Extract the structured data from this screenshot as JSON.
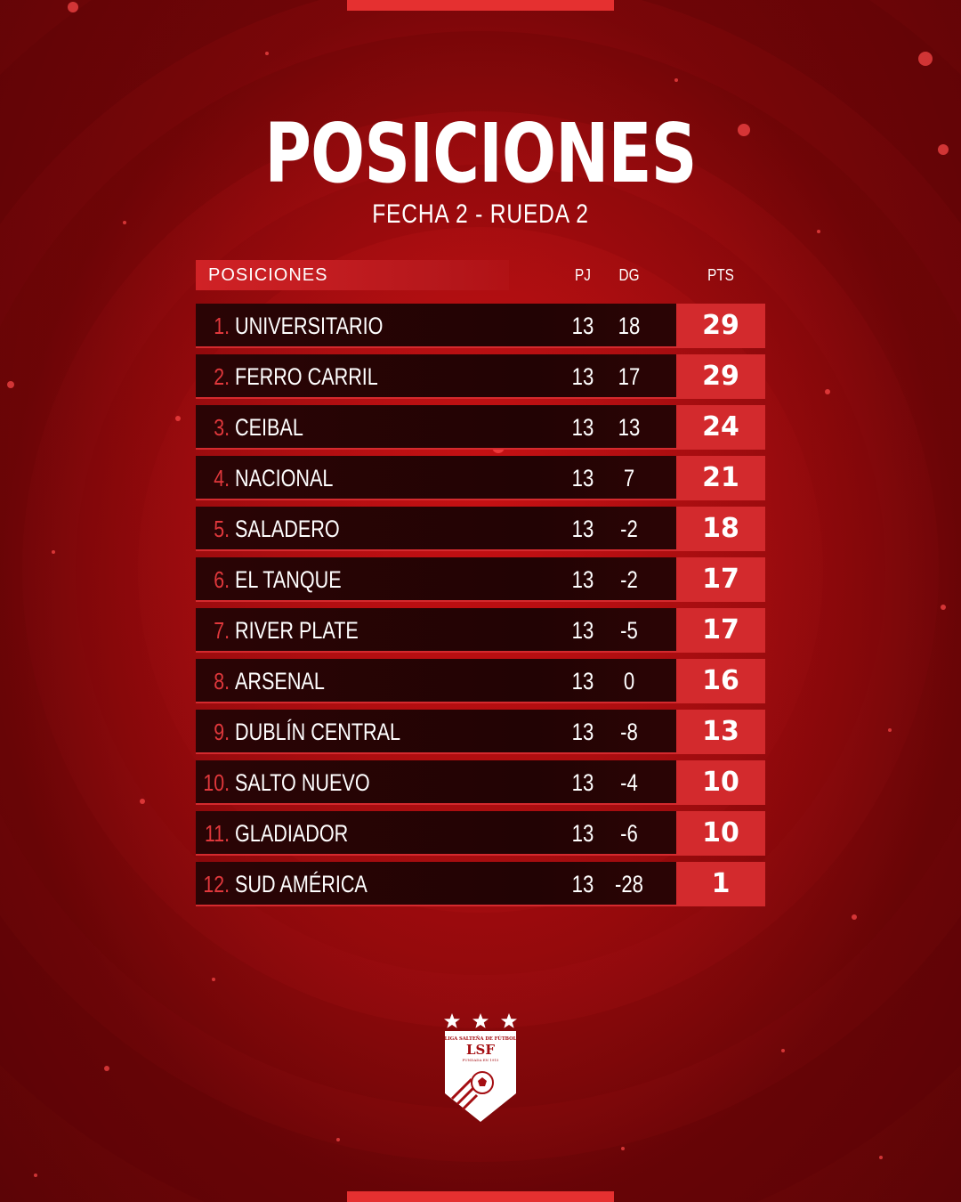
{
  "header": {
    "title": "POSICIONES",
    "subtitle": "FECHA 2 - RUEDA 2"
  },
  "table": {
    "columns": {
      "label": "POSICIONES",
      "pj": "PJ",
      "dg": "DG",
      "pts": "PTS"
    },
    "rows": [
      {
        "pos": "1.",
        "team": "UNIVERSITARIO",
        "pj": "13",
        "dg": "18",
        "pts": "29"
      },
      {
        "pos": "2.",
        "team": "FERRO CARRIL",
        "pj": "13",
        "dg": "17",
        "pts": "29"
      },
      {
        "pos": "3.",
        "team": "CEIBAL",
        "pj": "13",
        "dg": "13",
        "pts": "24"
      },
      {
        "pos": "4.",
        "team": "NACIONAL",
        "pj": "13",
        "dg": "7",
        "pts": "21"
      },
      {
        "pos": "5.",
        "team": "SALADERO",
        "pj": "13",
        "dg": "-2",
        "pts": "18"
      },
      {
        "pos": "6.",
        "team": "EL TANQUE",
        "pj": "13",
        "dg": "-2",
        "pts": "17"
      },
      {
        "pos": "7.",
        "team": "RIVER PLATE",
        "pj": "13",
        "dg": "-5",
        "pts": "17"
      },
      {
        "pos": "8.",
        "team": "ARSENAL",
        "pj": "13",
        "dg": "0",
        "pts": "16"
      },
      {
        "pos": "9.",
        "team": "DUBLÍN CENTRAL",
        "pj": "13",
        "dg": "-8",
        "pts": "13"
      },
      {
        "pos": "10.",
        "team": "SALTO NUEVO",
        "pj": "13",
        "dg": "-4",
        "pts": "10"
      },
      {
        "pos": "11.",
        "team": "GLADIADOR",
        "pj": "13",
        "dg": "-6",
        "pts": "10"
      },
      {
        "pos": "12.",
        "team": "SUD AMÉRICA",
        "pj": "13",
        "dg": "-28",
        "pts": "1"
      }
    ]
  },
  "logo": {
    "icon": "lsf-shield-logo",
    "name": "LIGA SALTEÑA DE FÚTBOL",
    "abbr": "LSF",
    "founded": "FUNDADA EN 1915",
    "stars": 3
  },
  "colors": {
    "accent": "#d32a2d",
    "row_bg": "#220304",
    "position_number": "#e0383c"
  }
}
